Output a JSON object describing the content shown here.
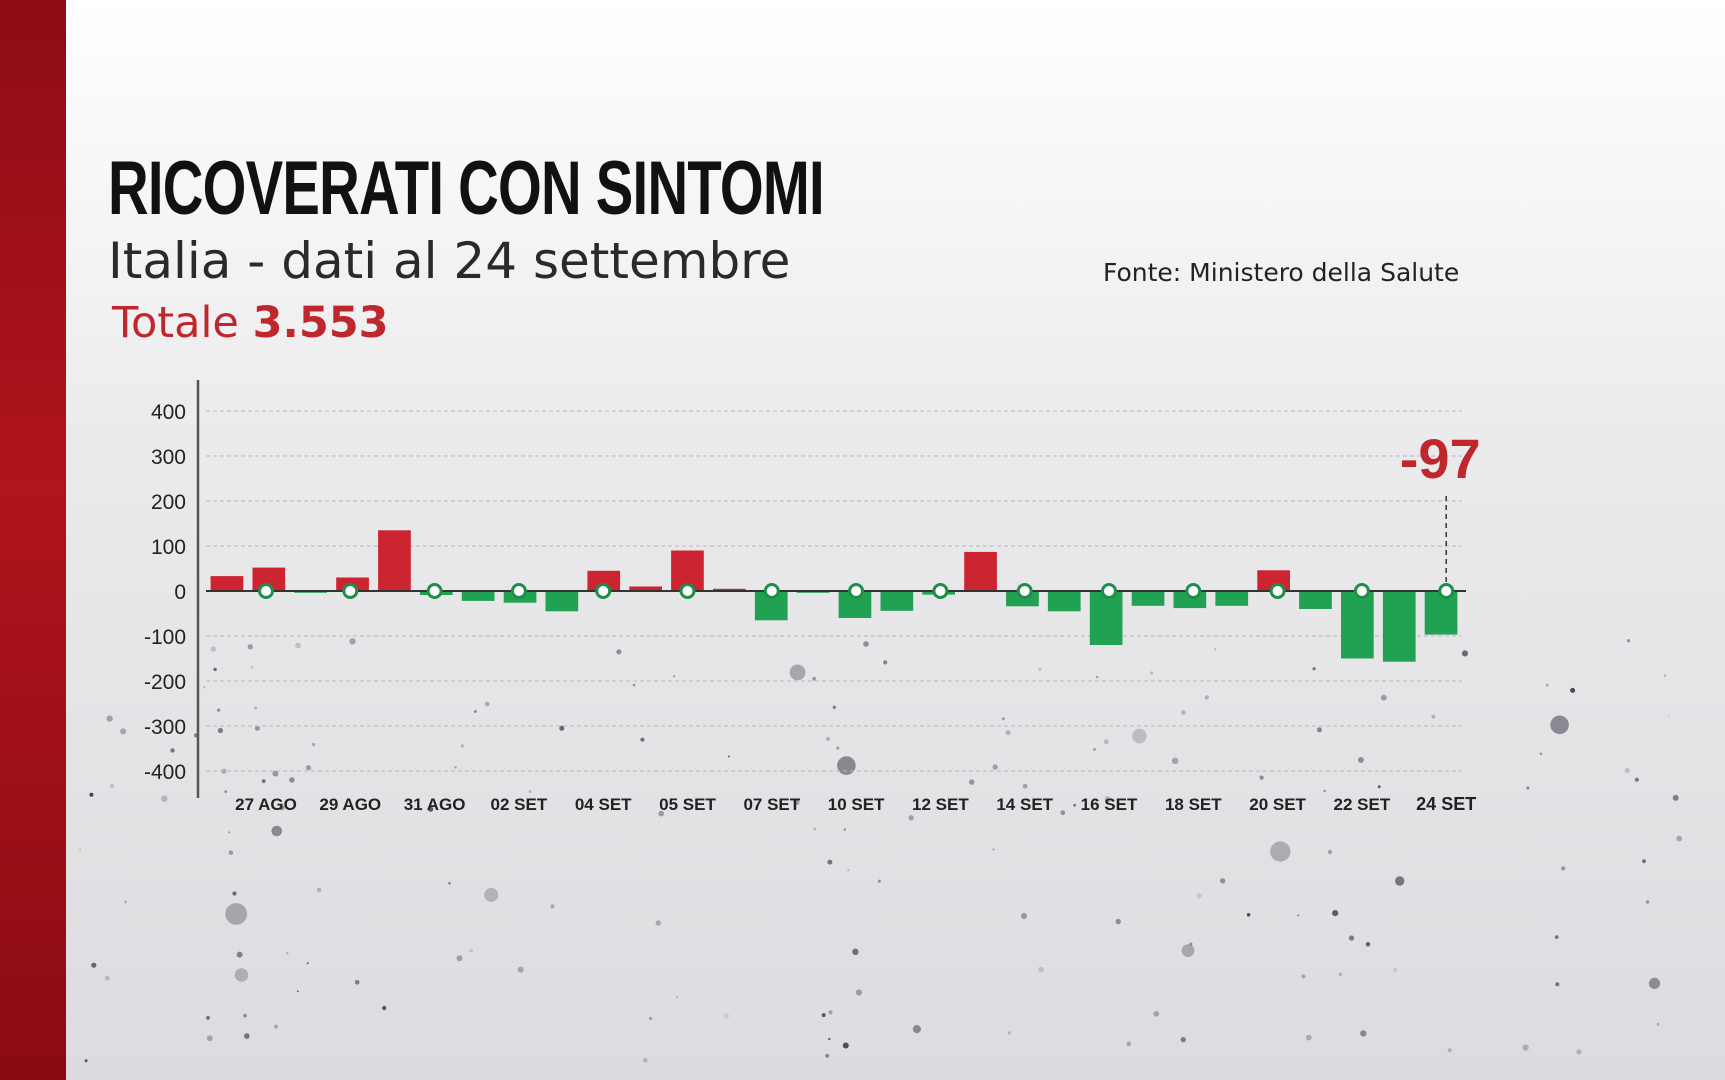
{
  "header": {
    "title": "RICOVERATI CON SINTOMI",
    "subtitle": "Italia - dati al 24 settembre",
    "total_label": "Totale",
    "total_value": "3.553",
    "source": "Fonte: Ministero della Salute"
  },
  "colors": {
    "positive": "#cc2431",
    "negative": "#21a152",
    "accent": "#c0272d",
    "stripe": "#a3121a"
  },
  "chart_data": {
    "type": "bar",
    "title": "RICOVERATI CON SINTOMI",
    "xlabel": "",
    "ylabel": "",
    "ylim": [
      -400,
      400
    ],
    "yticks": [
      400,
      300,
      200,
      100,
      0,
      -100,
      -200,
      -300,
      -400
    ],
    "xtick_labels": [
      "27 AGO",
      "29 AGO",
      "31 AGO",
      "02 SET",
      "04 SET",
      "05 SET",
      "07 SET",
      "10 SET",
      "12 SET",
      "14 SET",
      "16 SET",
      "18 SET",
      "20 SET",
      "22 SET",
      "24 SET"
    ],
    "values": [
      33,
      52,
      -4,
      30,
      135,
      -9,
      -22,
      -26,
      -45,
      45,
      10,
      90,
      5,
      -65,
      -4,
      -60,
      -44,
      -8,
      87,
      -34,
      -45,
      -120,
      -33,
      -38,
      -33,
      46,
      -40,
      -150,
      -157,
      -97
    ],
    "grid": true,
    "annotation": {
      "text": "-97",
      "target_label": "24 SET"
    }
  }
}
